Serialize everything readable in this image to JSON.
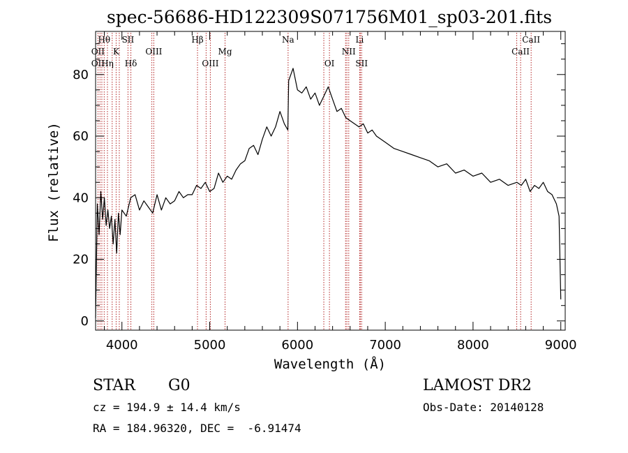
{
  "chart_data": {
    "type": "line",
    "title": "spec-56686-HD122309S071756M01_sp03-201.fits",
    "xlabel": "Wavelength (Å)",
    "ylabel": "Flux (relative)",
    "xlim": [
      3700,
      9050
    ],
    "ylim": [
      -3,
      94
    ],
    "xticks": [
      4000,
      5000,
      6000,
      7000,
      8000,
      9000
    ],
    "yticks": [
      0,
      20,
      40,
      60,
      80
    ],
    "series": [
      {
        "x": [
          3700,
          3720,
          3740,
          3760,
          3780,
          3800,
          3820,
          3840,
          3860,
          3880,
          3900,
          3920,
          3940,
          3960,
          3980,
          4000,
          4050,
          4100,
          4150,
          4200,
          4250,
          4300,
          4350,
          4400,
          4450,
          4500,
          4550,
          4600,
          4650,
          4700,
          4750,
          4800,
          4850,
          4900,
          4950,
          5000,
          5050,
          5100,
          5150,
          5200,
          5250,
          5300,
          5350,
          5400,
          5450,
          5500,
          5550,
          5600,
          5650,
          5700,
          5750,
          5800,
          5850,
          5890,
          5900,
          5950,
          6000,
          6050,
          6100,
          6150,
          6200,
          6250,
          6300,
          6350,
          6400,
          6450,
          6500,
          6550,
          6600,
          6650,
          6700,
          6750,
          6800,
          6850,
          6900,
          6950,
          7000,
          7100,
          7200,
          7300,
          7400,
          7500,
          7600,
          7700,
          7800,
          7900,
          8000,
          8100,
          8200,
          8300,
          8400,
          8500,
          8550,
          8600,
          8650,
          8700,
          8750,
          8800,
          8850,
          8900,
          8950,
          8980,
          9000
        ],
        "y": [
          1,
          38,
          28,
          42,
          33,
          40,
          31,
          36,
          30,
          34,
          25,
          33,
          22,
          35,
          28,
          36,
          34,
          40,
          41,
          36,
          39,
          37,
          35,
          41,
          36,
          40,
          38,
          39,
          42,
          40,
          41,
          41,
          44,
          43,
          45,
          42,
          43,
          48,
          45,
          47,
          46,
          49,
          51,
          52,
          56,
          57,
          54,
          59,
          63,
          60,
          63,
          68,
          64,
          62,
          78,
          82,
          75,
          74,
          76,
          72,
          74,
          70,
          73,
          76,
          72,
          68,
          69,
          66,
          65,
          64,
          63,
          64,
          61,
          62,
          60,
          59,
          58,
          56,
          55,
          54,
          53,
          52,
          50,
          51,
          48,
          49,
          47,
          48,
          45,
          46,
          44,
          45,
          44,
          46,
          42,
          44,
          43,
          45,
          42,
          41,
          38,
          34,
          7
        ]
      }
    ],
    "line_markers": {
      "row1": [
        {
          "label": "Hθ",
          "x": 3798
        },
        {
          "label": "SII",
          "x": 4069
        },
        {
          "label": "Hβ",
          "x": 4861
        },
        {
          "label": "Na",
          "x": 5893
        },
        {
          "label": "Li",
          "x": 6708
        },
        {
          "label": "CaII",
          "x": 8662
        }
      ],
      "row2": [
        {
          "label": "OII",
          "x": 3727
        },
        {
          "label": "K",
          "x": 3934
        },
        {
          "label": "OIII",
          "x": 4363
        },
        {
          "label": "Mg",
          "x": 5175
        },
        {
          "label": "NII",
          "x": 6584
        },
        {
          "label": "CaII",
          "x": 8542
        }
      ],
      "row3": [
        {
          "label": "OII",
          "x": 3727
        },
        {
          "label": "Hη",
          "x": 3835
        },
        {
          "label": "Hδ",
          "x": 4102
        },
        {
          "label": "OIII",
          "x": 5007
        },
        {
          "label": "OI",
          "x": 6364
        },
        {
          "label": "SII",
          "x": 6731
        }
      ],
      "extra_lines": [
        3750,
        3771,
        3889,
        3970,
        4341,
        4959,
        6300,
        6548,
        6563,
        6716,
        8498
      ]
    }
  },
  "info": {
    "object_class": "STAR",
    "subclass": "G0",
    "survey": "LAMOST DR2",
    "redshift": "cz = 194.9 ± 14.4 km/s",
    "obs_date": "Obs-Date: 20140128",
    "coords": "RA = 184.96320, DEC =  -6.91474"
  }
}
